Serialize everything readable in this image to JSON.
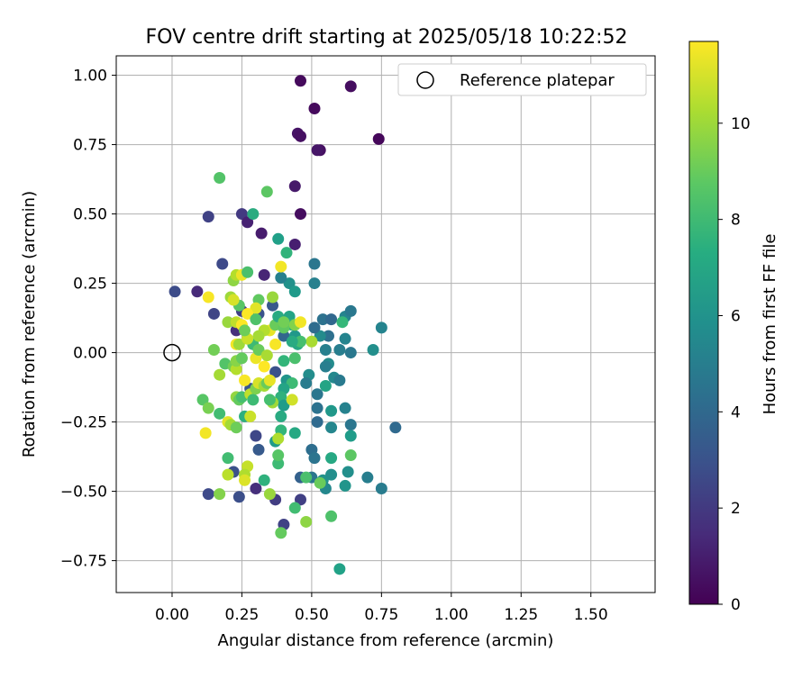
{
  "chart_data": {
    "type": "scatter",
    "title": "FOV centre drift starting at 2025/05/18 10:22:52",
    "xlabel": "Angular distance from reference (arcmin)",
    "ylabel": "Rotation from reference (arcmin)",
    "xlim": [
      -0.2,
      1.73
    ],
    "ylim": [
      -0.865,
      1.07
    ],
    "xticks": [
      "0.00",
      "0.25",
      "0.50",
      "0.75",
      "1.00",
      "1.25",
      "1.50"
    ],
    "yticks": [
      "1.00",
      "0.75",
      "0.50",
      "0.25",
      "0.00",
      "−0.25",
      "−0.50",
      "−0.75"
    ],
    "grid": true,
    "legend": {
      "position": "upper right",
      "entries": [
        "Reference platepar"
      ]
    },
    "reference_point": {
      "x": 0.0,
      "y": 0.0
    },
    "colorbar": {
      "label": "Hours from first FF file",
      "colormap": "viridis",
      "min": 0,
      "max": 11.7,
      "ticks": [
        "0",
        "2",
        "4",
        "6",
        "8",
        "10"
      ]
    },
    "points": [
      {
        "x": 0.46,
        "y": 0.98,
        "h": 0.3
      },
      {
        "x": 0.64,
        "y": 0.96,
        "h": 0.4
      },
      {
        "x": 0.51,
        "y": 0.88,
        "h": 0.3
      },
      {
        "x": 0.45,
        "y": 0.79,
        "h": 0.6
      },
      {
        "x": 0.74,
        "y": 0.77,
        "h": 0.2
      },
      {
        "x": 0.46,
        "y": 0.78,
        "h": 0.5
      },
      {
        "x": 0.53,
        "y": 0.73,
        "h": 0.5
      },
      {
        "x": 0.52,
        "y": 0.73,
        "h": 0.7
      },
      {
        "x": 0.44,
        "y": 0.6,
        "h": 0.8
      },
      {
        "x": 0.46,
        "y": 0.5,
        "h": 0.4
      },
      {
        "x": 0.32,
        "y": 0.43,
        "h": 0.9
      },
      {
        "x": 0.44,
        "y": 0.39,
        "h": 1.0
      },
      {
        "x": 0.25,
        "y": 0.5,
        "h": 2.0
      },
      {
        "x": 0.13,
        "y": 0.49,
        "h": 2.3
      },
      {
        "x": 0.27,
        "y": 0.47,
        "h": 1.1
      },
      {
        "x": 0.33,
        "y": 0.28,
        "h": 1.2
      },
      {
        "x": 0.18,
        "y": 0.32,
        "h": 2.6
      },
      {
        "x": 0.01,
        "y": 0.22,
        "h": 2.7
      },
      {
        "x": 0.09,
        "y": 0.22,
        "h": 1.4
      },
      {
        "x": 0.15,
        "y": 0.14,
        "h": 2.4
      },
      {
        "x": 0.23,
        "y": 0.08,
        "h": 1.6
      },
      {
        "x": 0.25,
        "y": 0.15,
        "h": 2.2
      },
      {
        "x": 0.31,
        "y": 0.14,
        "h": 3.0
      },
      {
        "x": 0.36,
        "y": 0.17,
        "h": 3.2
      },
      {
        "x": 0.4,
        "y": 0.06,
        "h": 3.8
      },
      {
        "x": 0.37,
        "y": -0.07,
        "h": 2.9
      },
      {
        "x": 0.28,
        "y": -0.13,
        "h": 3.1
      },
      {
        "x": 0.3,
        "y": -0.3,
        "h": 2.5
      },
      {
        "x": 0.31,
        "y": -0.35,
        "h": 3.3
      },
      {
        "x": 0.22,
        "y": -0.43,
        "h": 2.9
      },
      {
        "x": 0.24,
        "y": -0.52,
        "h": 2.8
      },
      {
        "x": 0.13,
        "y": -0.51,
        "h": 2.6
      },
      {
        "x": 0.3,
        "y": -0.49,
        "h": 1.6
      },
      {
        "x": 0.37,
        "y": -0.53,
        "h": 2.1
      },
      {
        "x": 0.4,
        "y": -0.62,
        "h": 2.3
      },
      {
        "x": 0.46,
        "y": -0.45,
        "h": 3.6
      },
      {
        "x": 0.46,
        "y": -0.53,
        "h": 2.2
      },
      {
        "x": 0.5,
        "y": -0.45,
        "h": 4.6
      },
      {
        "x": 0.5,
        "y": -0.35,
        "h": 4.2
      },
      {
        "x": 0.51,
        "y": -0.38,
        "h": 4.5
      },
      {
        "x": 0.54,
        "y": -0.46,
        "h": 6.0
      },
      {
        "x": 0.55,
        "y": -0.49,
        "h": 5.5
      },
      {
        "x": 0.57,
        "y": -0.44,
        "h": 5.8
      },
      {
        "x": 0.6,
        "y": -0.78,
        "h": 6.7
      },
      {
        "x": 0.62,
        "y": -0.48,
        "h": 6.1
      },
      {
        "x": 0.63,
        "y": -0.43,
        "h": 5.8
      },
      {
        "x": 0.7,
        "y": -0.45,
        "h": 5.0
      },
      {
        "x": 0.75,
        "y": -0.49,
        "h": 4.9
      },
      {
        "x": 0.8,
        "y": -0.27,
        "h": 4.0
      },
      {
        "x": 0.62,
        "y": -0.2,
        "h": 5.2
      },
      {
        "x": 0.64,
        "y": -0.26,
        "h": 4.6
      },
      {
        "x": 0.64,
        "y": -0.3,
        "h": 6.4
      },
      {
        "x": 0.57,
        "y": -0.21,
        "h": 6.2
      },
      {
        "x": 0.57,
        "y": -0.27,
        "h": 5.4
      },
      {
        "x": 0.52,
        "y": -0.2,
        "h": 4.4
      },
      {
        "x": 0.52,
        "y": -0.25,
        "h": 4.0
      },
      {
        "x": 0.52,
        "y": -0.15,
        "h": 4.6
      },
      {
        "x": 0.49,
        "y": -0.08,
        "h": 5.7
      },
      {
        "x": 0.48,
        "y": -0.11,
        "h": 4.9
      },
      {
        "x": 0.55,
        "y": -0.12,
        "h": 6.8
      },
      {
        "x": 0.56,
        "y": -0.04,
        "h": 5.6
      },
      {
        "x": 0.55,
        "y": -0.05,
        "h": 5.0
      },
      {
        "x": 0.58,
        "y": -0.09,
        "h": 5.5
      },
      {
        "x": 0.6,
        "y": -0.1,
        "h": 4.8
      },
      {
        "x": 0.62,
        "y": 0.05,
        "h": 5.3
      },
      {
        "x": 0.64,
        "y": 0.0,
        "h": 4.7
      },
      {
        "x": 0.6,
        "y": 0.01,
        "h": 5.0
      },
      {
        "x": 0.56,
        "y": 0.06,
        "h": 4.3
      },
      {
        "x": 0.55,
        "y": 0.01,
        "h": 5.1
      },
      {
        "x": 0.53,
        "y": 0.06,
        "h": 5.6
      },
      {
        "x": 0.51,
        "y": 0.09,
        "h": 4.1
      },
      {
        "x": 0.54,
        "y": 0.12,
        "h": 4.4
      },
      {
        "x": 0.57,
        "y": 0.12,
        "h": 3.9
      },
      {
        "x": 0.62,
        "y": 0.13,
        "h": 5.3
      },
      {
        "x": 0.64,
        "y": 0.15,
        "h": 4.7
      },
      {
        "x": 0.61,
        "y": 0.11,
        "h": 7.8
      },
      {
        "x": 0.72,
        "y": 0.01,
        "h": 5.8
      },
      {
        "x": 0.75,
        "y": 0.09,
        "h": 5.3
      },
      {
        "x": 0.51,
        "y": 0.32,
        "h": 4.6
      },
      {
        "x": 0.51,
        "y": 0.25,
        "h": 5.1
      },
      {
        "x": 0.42,
        "y": 0.25,
        "h": 5.9
      },
      {
        "x": 0.44,
        "y": 0.22,
        "h": 6.3
      },
      {
        "x": 0.39,
        "y": 0.27,
        "h": 5.1
      },
      {
        "x": 0.41,
        "y": 0.36,
        "h": 7.6
      },
      {
        "x": 0.38,
        "y": 0.41,
        "h": 6.6
      },
      {
        "x": 0.29,
        "y": 0.5,
        "h": 7.2
      },
      {
        "x": 0.34,
        "y": 0.58,
        "h": 8.7
      },
      {
        "x": 0.17,
        "y": 0.63,
        "h": 8.5
      },
      {
        "x": 0.42,
        "y": 0.13,
        "h": 6.8
      },
      {
        "x": 0.43,
        "y": 0.1,
        "h": 7.3
      },
      {
        "x": 0.44,
        "y": 0.06,
        "h": 6.2
      },
      {
        "x": 0.45,
        "y": 0.03,
        "h": 7.0
      },
      {
        "x": 0.4,
        "y": -0.03,
        "h": 7.7
      },
      {
        "x": 0.44,
        "y": -0.02,
        "h": 8.3
      },
      {
        "x": 0.41,
        "y": -0.1,
        "h": 6.1
      },
      {
        "x": 0.43,
        "y": -0.11,
        "h": 8.0
      },
      {
        "x": 0.4,
        "y": -0.13,
        "h": 6.8
      },
      {
        "x": 0.39,
        "y": -0.16,
        "h": 7.5
      },
      {
        "x": 0.4,
        "y": -0.19,
        "h": 6.4
      },
      {
        "x": 0.39,
        "y": -0.23,
        "h": 7.1
      },
      {
        "x": 0.39,
        "y": -0.28,
        "h": 7.7
      },
      {
        "x": 0.37,
        "y": -0.32,
        "h": 6.4
      },
      {
        "x": 0.38,
        "y": -0.4,
        "h": 8.0
      },
      {
        "x": 0.38,
        "y": -0.37,
        "h": 8.6
      },
      {
        "x": 0.44,
        "y": -0.29,
        "h": 7.0
      },
      {
        "x": 0.48,
        "y": -0.45,
        "h": 8.3
      },
      {
        "x": 0.53,
        "y": -0.47,
        "h": 9.0
      },
      {
        "x": 0.44,
        "y": -0.56,
        "h": 8.1
      },
      {
        "x": 0.39,
        "y": -0.65,
        "h": 8.9
      },
      {
        "x": 0.48,
        "y": -0.61,
        "h": 9.7
      },
      {
        "x": 0.57,
        "y": -0.59,
        "h": 8.4
      },
      {
        "x": 0.64,
        "y": -0.37,
        "h": 8.7
      },
      {
        "x": 0.57,
        "y": -0.38,
        "h": 7.0
      },
      {
        "x": 0.33,
        "y": -0.46,
        "h": 7.5
      },
      {
        "x": 0.35,
        "y": -0.51,
        "h": 9.9
      },
      {
        "x": 0.27,
        "y": -0.41,
        "h": 10.7
      },
      {
        "x": 0.26,
        "y": -0.44,
        "h": 10.3
      },
      {
        "x": 0.26,
        "y": -0.46,
        "h": 11.1
      },
      {
        "x": 0.2,
        "y": -0.44,
        "h": 10.5
      },
      {
        "x": 0.2,
        "y": -0.38,
        "h": 8.1
      },
      {
        "x": 0.17,
        "y": -0.51,
        "h": 9.5
      },
      {
        "x": 0.12,
        "y": -0.29,
        "h": 11.5
      },
      {
        "x": 0.17,
        "y": -0.22,
        "h": 8.1
      },
      {
        "x": 0.11,
        "y": -0.17,
        "h": 8.6
      },
      {
        "x": 0.13,
        "y": -0.2,
        "h": 9.3
      },
      {
        "x": 0.2,
        "y": -0.25,
        "h": 11.2
      },
      {
        "x": 0.21,
        "y": -0.26,
        "h": 10.1
      },
      {
        "x": 0.23,
        "y": -0.27,
        "h": 9.1
      },
      {
        "x": 0.26,
        "y": -0.23,
        "h": 7.4
      },
      {
        "x": 0.28,
        "y": -0.23,
        "h": 10.8
      },
      {
        "x": 0.23,
        "y": -0.16,
        "h": 9.8
      },
      {
        "x": 0.24,
        "y": -0.17,
        "h": 8.9
      },
      {
        "x": 0.25,
        "y": -0.16,
        "h": 8.2
      },
      {
        "x": 0.28,
        "y": -0.15,
        "h": 10.6
      },
      {
        "x": 0.29,
        "y": -0.17,
        "h": 8.0
      },
      {
        "x": 0.3,
        "y": -0.13,
        "h": 9.4
      },
      {
        "x": 0.31,
        "y": -0.11,
        "h": 11.0
      },
      {
        "x": 0.33,
        "y": -0.12,
        "h": 10.1
      },
      {
        "x": 0.34,
        "y": -0.11,
        "h": 9.0
      },
      {
        "x": 0.35,
        "y": -0.1,
        "h": 11.3
      },
      {
        "x": 0.36,
        "y": -0.18,
        "h": 10.0
      },
      {
        "x": 0.35,
        "y": -0.17,
        "h": 8.2
      },
      {
        "x": 0.38,
        "y": -0.31,
        "h": 10.3
      },
      {
        "x": 0.43,
        "y": -0.17,
        "h": 10.9
      },
      {
        "x": 0.17,
        "y": -0.08,
        "h": 10.1
      },
      {
        "x": 0.19,
        "y": -0.04,
        "h": 8.5
      },
      {
        "x": 0.22,
        "y": -0.05,
        "h": 9.2
      },
      {
        "x": 0.23,
        "y": -0.06,
        "h": 10.4
      },
      {
        "x": 0.26,
        "y": -0.1,
        "h": 11.6
      },
      {
        "x": 0.23,
        "y": -0.03,
        "h": 9.6
      },
      {
        "x": 0.25,
        "y": -0.02,
        "h": 8.9
      },
      {
        "x": 0.29,
        "y": 0.03,
        "h": 8.0
      },
      {
        "x": 0.3,
        "y": -0.02,
        "h": 11.4
      },
      {
        "x": 0.31,
        "y": 0.01,
        "h": 9.0
      },
      {
        "x": 0.33,
        "y": -0.05,
        "h": 11.7
      },
      {
        "x": 0.34,
        "y": -0.01,
        "h": 10.2
      },
      {
        "x": 0.15,
        "y": 0.01,
        "h": 9.2
      },
      {
        "x": 0.23,
        "y": 0.03,
        "h": 11.5
      },
      {
        "x": 0.24,
        "y": 0.03,
        "h": 10.0
      },
      {
        "x": 0.27,
        "y": 0.05,
        "h": 10.8
      },
      {
        "x": 0.37,
        "y": 0.03,
        "h": 11.6
      },
      {
        "x": 0.35,
        "y": 0.08,
        "h": 11.3
      },
      {
        "x": 0.33,
        "y": 0.08,
        "h": 10.4
      },
      {
        "x": 0.37,
        "y": 0.1,
        "h": 9.0
      },
      {
        "x": 0.38,
        "y": 0.13,
        "h": 7.1
      },
      {
        "x": 0.4,
        "y": 0.09,
        "h": 8.8
      },
      {
        "x": 0.44,
        "y": 0.1,
        "h": 9.5
      },
      {
        "x": 0.46,
        "y": 0.11,
        "h": 11.5
      },
      {
        "x": 0.5,
        "y": 0.04,
        "h": 10.2
      },
      {
        "x": 0.46,
        "y": 0.04,
        "h": 8.2
      },
      {
        "x": 0.43,
        "y": 0.04,
        "h": 7.1
      },
      {
        "x": 0.4,
        "y": 0.11,
        "h": 9.2
      },
      {
        "x": 0.36,
        "y": 0.2,
        "h": 9.9
      },
      {
        "x": 0.31,
        "y": 0.19,
        "h": 8.8
      },
      {
        "x": 0.3,
        "y": 0.16,
        "h": 11.2
      },
      {
        "x": 0.27,
        "y": 0.14,
        "h": 11.7
      },
      {
        "x": 0.24,
        "y": 0.17,
        "h": 8.6
      },
      {
        "x": 0.21,
        "y": 0.2,
        "h": 10.0
      },
      {
        "x": 0.22,
        "y": 0.26,
        "h": 9.7
      },
      {
        "x": 0.23,
        "y": 0.28,
        "h": 10.4
      },
      {
        "x": 0.25,
        "y": 0.28,
        "h": 11.4
      },
      {
        "x": 0.27,
        "y": 0.29,
        "h": 8.3
      },
      {
        "x": 0.39,
        "y": 0.31,
        "h": 11.5
      },
      {
        "x": 0.22,
        "y": 0.19,
        "h": 11.0
      },
      {
        "x": 0.2,
        "y": 0.11,
        "h": 9.9
      },
      {
        "x": 0.23,
        "y": 0.11,
        "h": 10.6
      },
      {
        "x": 0.25,
        "y": 0.1,
        "h": 11.7
      },
      {
        "x": 0.26,
        "y": 0.08,
        "h": 9.1
      },
      {
        "x": 0.3,
        "y": 0.12,
        "h": 8.4
      },
      {
        "x": 0.31,
        "y": 0.06,
        "h": 10.1
      },
      {
        "x": 0.13,
        "y": 0.2,
        "h": 11.6
      }
    ]
  }
}
